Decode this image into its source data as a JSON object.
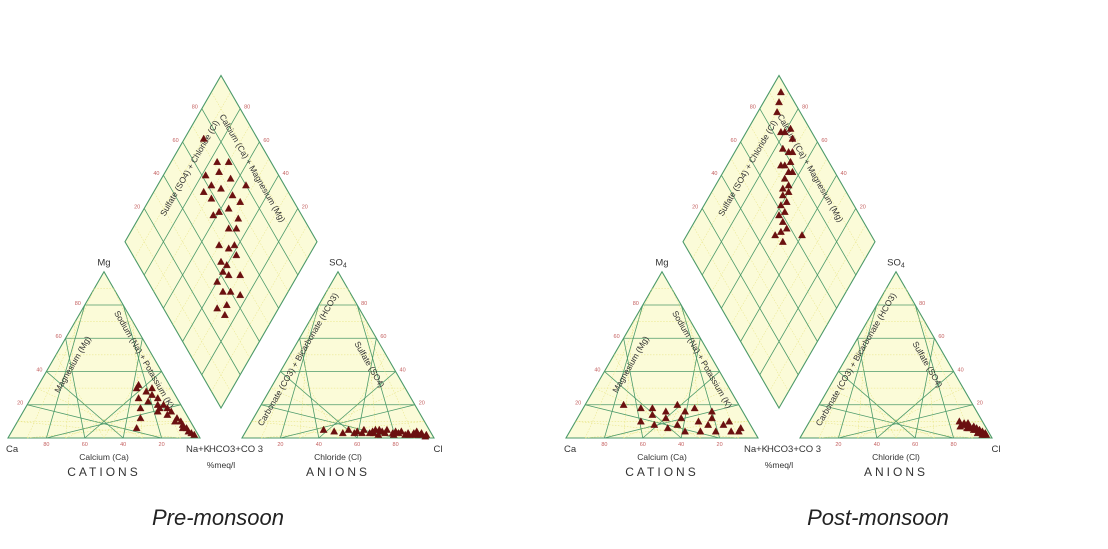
{
  "labels": {
    "apex_mg": "Mg",
    "apex_ca": "Ca",
    "apex_nak": "Na+K",
    "apex_so4": "SO",
    "apex_so4_sub": "4",
    "apex_hco3": "HCO3+CO 3",
    "apex_cl": "Cl",
    "cations": "CATIONS",
    "anions": "ANIONS",
    "calcium": "Calcium (Ca)",
    "chloride": "Chloride (Cl)",
    "magnesium": "Magnesium (Mg)",
    "sodium_potassium": "Sodium (Na) + Potassium (K)",
    "carbonate_bicarbonate": "Carbonate (CO3) + Bicarbonate (HCO3)",
    "sulfate": "Sulfate (SO4)",
    "sulfate_chloride": "Sulfate (SO4) + Chloride (Cl)",
    "calcium_magnesium": "Calcium (Ca) + Magnesium (Mg)",
    "meq": "%meq/l"
  },
  "chart_data": [
    {
      "type": "scatter",
      "subtype": "piper-diagram",
      "caption": "Pre-monsoon",
      "marker_color": "#6b1010",
      "grid_color": "#4c9a6a",
      "fill_color": "#fbfbd8",
      "tick_values": [
        20,
        40,
        60,
        80
      ],
      "cations": {
        "fields": [
          "Ca",
          "Mg",
          "NaK"
        ],
        "points": [
          [
            16,
            32,
            52
          ],
          [
            14,
            28,
            58
          ],
          [
            12,
            26,
            62
          ],
          [
            10,
            24,
            66
          ],
          [
            9,
            20,
            71
          ],
          [
            8,
            18,
            74
          ],
          [
            7,
            16,
            77
          ],
          [
            6,
            12,
            82
          ],
          [
            5,
            10,
            85
          ],
          [
            5,
            8,
            87
          ],
          [
            4,
            6,
            90
          ],
          [
            4,
            4,
            92
          ],
          [
            3,
            3,
            94
          ],
          [
            2,
            2,
            96
          ],
          [
            18,
            30,
            52
          ],
          [
            16,
            22,
            62
          ],
          [
            12,
            20,
            68
          ],
          [
            10,
            14,
            76
          ],
          [
            8,
            10,
            82
          ],
          [
            6,
            6,
            88
          ],
          [
            20,
            24,
            56
          ],
          [
            22,
            18,
            60
          ],
          [
            14,
            16,
            70
          ],
          [
            30,
            6,
            64
          ],
          [
            25,
            12,
            63
          ],
          [
            10,
            30,
            60
          ],
          [
            12,
            18,
            70
          ]
        ]
      },
      "anions": {
        "fields": [
          "HCO3",
          "SO4",
          "Cl"
        ],
        "points": [
          [
            55,
            5,
            40
          ],
          [
            50,
            4,
            46
          ],
          [
            46,
            3,
            51
          ],
          [
            42,
            5,
            53
          ],
          [
            38,
            4,
            58
          ],
          [
            34,
            5,
            61
          ],
          [
            30,
            3,
            67
          ],
          [
            28,
            5,
            67
          ],
          [
            25,
            4,
            71
          ],
          [
            22,
            5,
            73
          ],
          [
            20,
            3,
            77
          ],
          [
            17,
            3,
            80
          ],
          [
            14,
            2,
            84
          ],
          [
            12,
            3,
            85
          ],
          [
            10,
            2,
            88
          ],
          [
            8,
            2,
            90
          ],
          [
            6,
            2,
            92
          ],
          [
            4,
            1,
            95
          ],
          [
            28,
            2,
            70
          ],
          [
            24,
            3,
            73
          ],
          [
            20,
            2,
            78
          ],
          [
            18,
            4,
            78
          ],
          [
            15,
            4,
            81
          ],
          [
            12,
            2,
            86
          ],
          [
            9,
            3,
            88
          ],
          [
            7,
            4,
            89
          ],
          [
            5,
            3,
            92
          ],
          [
            3,
            2,
            95
          ],
          [
            30,
            4,
            66
          ],
          [
            26,
            5,
            69
          ],
          [
            40,
            3,
            57
          ],
          [
            36,
            3,
            61
          ],
          [
            32,
            3,
            65
          ]
        ]
      },
      "diamond": {
        "fields": [
          "SO4_Cl",
          "Ca_Mg"
        ],
        "points": [
          [
            90,
            72
          ],
          [
            78,
            62
          ],
          [
            76,
            72
          ],
          [
            72,
            70
          ],
          [
            70,
            78
          ],
          [
            72,
            62
          ],
          [
            66,
            66
          ],
          [
            64,
            74
          ],
          [
            60,
            58
          ],
          [
            58,
            70
          ],
          [
            56,
            64
          ],
          [
            54,
            80
          ],
          [
            52,
            72
          ],
          [
            50,
            58
          ],
          [
            48,
            66
          ],
          [
            46,
            62
          ],
          [
            62,
            54
          ],
          [
            68,
            58
          ],
          [
            74,
            56
          ],
          [
            40,
            46
          ],
          [
            44,
            52
          ],
          [
            40,
            42
          ],
          [
            32,
            28
          ],
          [
            34,
            36
          ],
          [
            30,
            40
          ],
          [
            28,
            34
          ],
          [
            26,
            30
          ],
          [
            40,
            36
          ],
          [
            44,
            44
          ],
          [
            50,
            48
          ],
          [
            42,
            56
          ],
          [
            36,
            44
          ],
          [
            24,
            44
          ],
          [
            30,
            50
          ],
          [
            38,
            54
          ]
        ]
      }
    },
    {
      "type": "scatter",
      "subtype": "piper-diagram",
      "caption": "Post-monsoon",
      "marker_color": "#6b1010",
      "grid_color": "#4c9a6a",
      "fill_color": "#fbfbd8",
      "tick_values": [
        20,
        40,
        60,
        80
      ],
      "cations": {
        "fields": [
          "Ca",
          "Mg",
          "NaK"
        ],
        "points": [
          [
            60,
            20,
            20
          ],
          [
            52,
            18,
            30
          ],
          [
            46,
            18,
            36
          ],
          [
            40,
            16,
            44
          ],
          [
            56,
            10,
            34
          ],
          [
            50,
            8,
            42
          ],
          [
            44,
            6,
            50
          ],
          [
            38,
            8,
            54
          ],
          [
            34,
            12,
            54
          ],
          [
            30,
            16,
            54
          ],
          [
            26,
            10,
            64
          ],
          [
            22,
            8,
            70
          ],
          [
            18,
            12,
            70
          ],
          [
            14,
            8,
            78
          ],
          [
            10,
            10,
            80
          ],
          [
            8,
            4,
            88
          ],
          [
            6,
            6,
            88
          ],
          [
            20,
            4,
            76
          ],
          [
            28,
            4,
            68
          ],
          [
            36,
            4,
            60
          ],
          [
            42,
            12,
            46
          ],
          [
            48,
            14,
            38
          ],
          [
            24,
            18,
            58
          ],
          [
            16,
            16,
            68
          ],
          [
            12,
            4,
            84
          ],
          [
            32,
            20,
            48
          ]
        ]
      },
      "anions": {
        "fields": [
          "HCO3",
          "SO4",
          "Cl"
        ],
        "points": [
          [
            12,
            10,
            78
          ],
          [
            10,
            9,
            81
          ],
          [
            9,
            8,
            83
          ],
          [
            8,
            7,
            85
          ],
          [
            7,
            6,
            87
          ],
          [
            6,
            5,
            89
          ],
          [
            5,
            4,
            91
          ],
          [
            4,
            3,
            93
          ],
          [
            3,
            2,
            95
          ],
          [
            2,
            2,
            96
          ],
          [
            11,
            8,
            81
          ],
          [
            9,
            6,
            85
          ],
          [
            7,
            5,
            88
          ],
          [
            6,
            7,
            87
          ],
          [
            5,
            6,
            89
          ],
          [
            4,
            5,
            91
          ],
          [
            3,
            4,
            93
          ],
          [
            2,
            3,
            95
          ],
          [
            8,
            9,
            83
          ],
          [
            10,
            6,
            84
          ],
          [
            6,
            3,
            91
          ],
          [
            13,
            7,
            80
          ],
          [
            4,
            2,
            94
          ]
        ]
      },
      "diamond": {
        "fields": [
          "SO4_Cl",
          "Ca_Mg"
        ],
        "points": [
          [
            94,
            96
          ],
          [
            92,
            92
          ],
          [
            90,
            88
          ],
          [
            78,
            90
          ],
          [
            80,
            86
          ],
          [
            74,
            88
          ],
          [
            72,
            82
          ],
          [
            70,
            84
          ],
          [
            68,
            80
          ],
          [
            70,
            76
          ],
          [
            66,
            76
          ],
          [
            64,
            78
          ],
          [
            66,
            72
          ],
          [
            62,
            72
          ],
          [
            60,
            70
          ],
          [
            62,
            66
          ],
          [
            58,
            66
          ],
          [
            60,
            62
          ],
          [
            56,
            62
          ],
          [
            58,
            58
          ],
          [
            54,
            58
          ],
          [
            52,
            54
          ],
          [
            50,
            58
          ],
          [
            54,
            50
          ],
          [
            48,
            52
          ],
          [
            40,
            64
          ],
          [
            76,
            80
          ],
          [
            82,
            84
          ],
          [
            72,
            74
          ],
          [
            64,
            68
          ]
        ]
      }
    }
  ],
  "captions": {
    "left": "Pre-monsoon",
    "right": "Post-monsoon"
  }
}
